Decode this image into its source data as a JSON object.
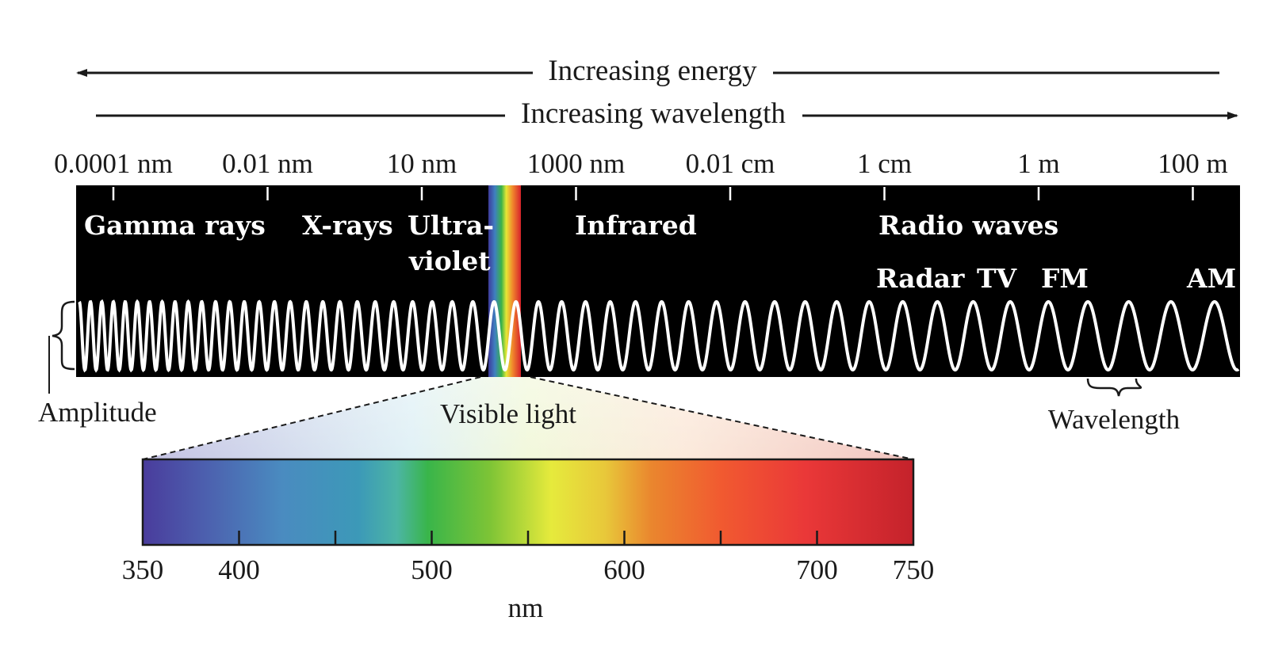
{
  "top_arrows": {
    "energy_label": "Increasing energy",
    "wavelength_label": "Increasing wavelength"
  },
  "scale_ticks": [
    "0.0001 nm",
    "0.01 nm",
    "10 nm",
    "1000 nm",
    "0.01 cm",
    "1 cm",
    "1 m",
    "100 m"
  ],
  "regions": {
    "gamma": "Gamma rays",
    "xrays": "X-rays",
    "uv_line1": "Ultra-",
    "uv_line2": "violet",
    "infrared": "Infrared",
    "radio": "Radio waves"
  },
  "radio_bands": {
    "radar": "Radar",
    "tv": "TV",
    "fm": "FM",
    "am": "AM"
  },
  "annotations": {
    "amplitude": "Amplitude",
    "wavelength": "Wavelength",
    "visible_light": "Visible light"
  },
  "visible_scale": {
    "labels": [
      "350",
      "400",
      "500",
      "600",
      "700",
      "750"
    ],
    "label_values": [
      350,
      400,
      500,
      600,
      700,
      750
    ],
    "tick_values": [
      400,
      450,
      500,
      550,
      600,
      650,
      700
    ],
    "range": [
      350,
      750
    ],
    "unit": "nm"
  },
  "colors": {
    "band_background": "#000000",
    "wave": "#ffffff",
    "arrow": "#1a1a1a"
  }
}
